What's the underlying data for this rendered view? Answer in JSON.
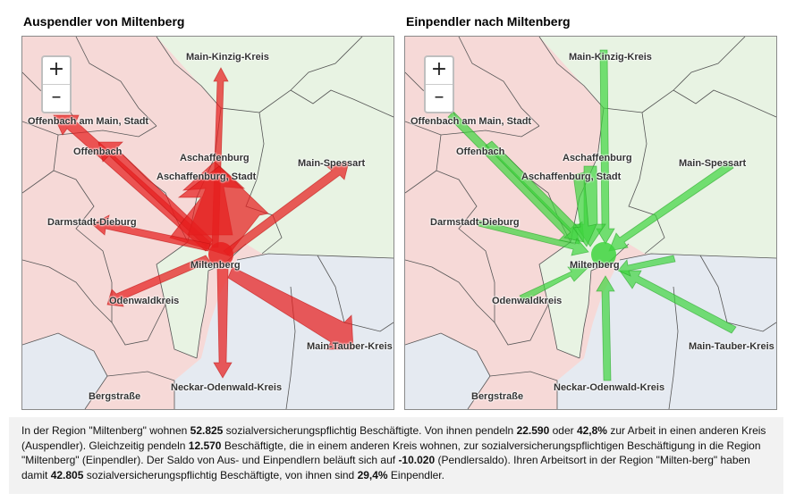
{
  "left_panel": {
    "title": "Auspendler von Miltenberg",
    "arrow_color": "#e61e1e"
  },
  "right_panel": {
    "title": "Einpendler nach Miltenberg",
    "arrow_color": "#3ed43e"
  },
  "zoom": {
    "in_label": "+",
    "out_label": "–"
  },
  "map_labels": {
    "main_kinzig": "Main-Kinzig-Kreis",
    "offenbach_stadt": "Offenbach am Main, Stadt",
    "offenbach": "Offenbach",
    "aschaffenburg": "Aschaffenburg",
    "aschaffenburg_stadt": "Aschaffenburg, Stadt",
    "main_spessart": "Main-Spessart",
    "darmstadt_dieburg": "Darmstadt-Dieburg",
    "miltenberg": "Miltenberg",
    "odenwaldkreis": "Odenwaldkreis",
    "main_tauber": "Main-Tauber-Kreis",
    "neckar_odenwald": "Neckar-Odenwald-Kreis",
    "bergstrasse": "Bergstraße"
  },
  "colors": {
    "hesse_fill": "#f6d9d7",
    "bavaria_fill": "#e8f3e3",
    "bw_fill": "#e5eaf1",
    "border": "#555555"
  },
  "description": {
    "s1a": "In der Region \"Miltenberg\" wohnen ",
    "wohnen": "52.825",
    "s1b": " sozialversicherungspflichtig Beschäftigte. Von ihnen pendeln ",
    "auspendler": "22.590",
    "s1c": " oder ",
    "auspendler_pct": "42,8%",
    "s1d": " zur Arbeit in einen anderen Kreis (Auspendler). Gleichzeitig pendeln ",
    "einpendler": "12.570",
    "s1e": " Beschäftigte, die in einem anderen Kreis wohnen, zur sozialversicherungspflichtigen Beschäftigung in die Region \"Miltenberg\" (Einpendler). Der Saldo von Aus- und Einpendlern beläuft sich auf ",
    "saldo": "-10.020",
    "s1f": " (Pendlersaldo). Ihren Arbeitsort in der Region \"Milten-berg\" haben damit ",
    "arbeitsort": "42.805",
    "s1g": " sozialversicherungspflichtig Beschäftigte, von ihnen sind ",
    "einpendler_pct": "29,4%",
    "s1h": " Einpendler."
  }
}
